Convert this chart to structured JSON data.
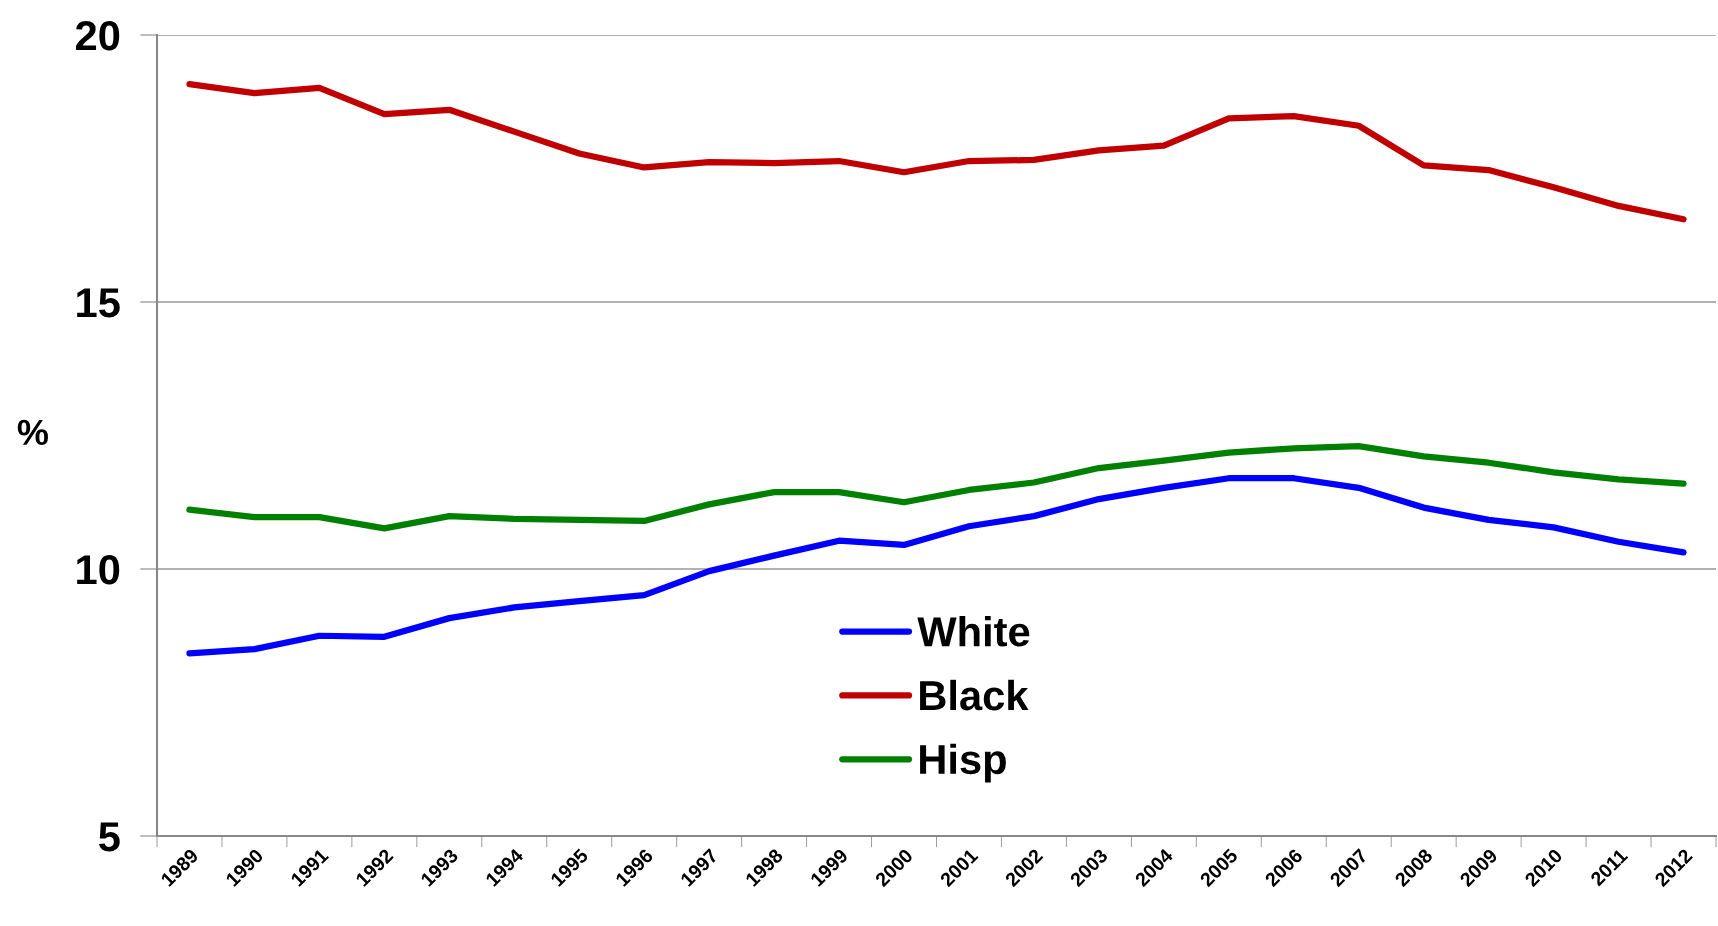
{
  "chart_data": {
    "type": "line",
    "ylabel": "%",
    "categories": [
      "1989",
      "1990",
      "1991",
      "1992",
      "1993",
      "1994",
      "1995",
      "1996",
      "1997",
      "1998",
      "1999",
      "2000",
      "2001",
      "2002",
      "2003",
      "2004",
      "2005",
      "2006",
      "2007",
      "2008",
      "2009",
      "2010",
      "2011",
      "2012"
    ],
    "series": [
      {
        "name": "White",
        "color": "#0000ff",
        "values": [
          8.42,
          8.5,
          8.75,
          8.73,
          9.08,
          9.28,
          9.4,
          9.51,
          9.96,
          10.25,
          10.53,
          10.45,
          10.8,
          10.99,
          11.31,
          11.52,
          11.7,
          11.7,
          11.52,
          11.15,
          10.92,
          10.78,
          10.51,
          10.31
        ]
      },
      {
        "name": "Black",
        "color": "#c00000",
        "values": [
          19.08,
          18.91,
          19.01,
          18.52,
          18.6,
          18.19,
          17.78,
          17.52,
          17.62,
          17.6,
          17.64,
          17.43,
          17.64,
          17.66,
          17.84,
          17.93,
          18.44,
          18.48,
          18.3,
          17.56,
          17.47,
          17.15,
          16.8,
          16.55
        ]
      },
      {
        "name": "Hisp",
        "color": "#008000",
        "values": [
          11.11,
          10.97,
          10.97,
          10.76,
          10.99,
          10.94,
          10.92,
          10.9,
          11.21,
          11.44,
          11.44,
          11.25,
          11.48,
          11.62,
          11.89,
          12.03,
          12.18,
          12.26,
          12.3,
          12.11,
          11.99,
          11.81,
          11.68,
          11.6
        ]
      }
    ],
    "ylim": [
      5,
      20
    ],
    "yticks": [
      5,
      10,
      15,
      20
    ],
    "grid": "y",
    "legend": "bottom",
    "marker": "none",
    "line_style": "solid"
  }
}
